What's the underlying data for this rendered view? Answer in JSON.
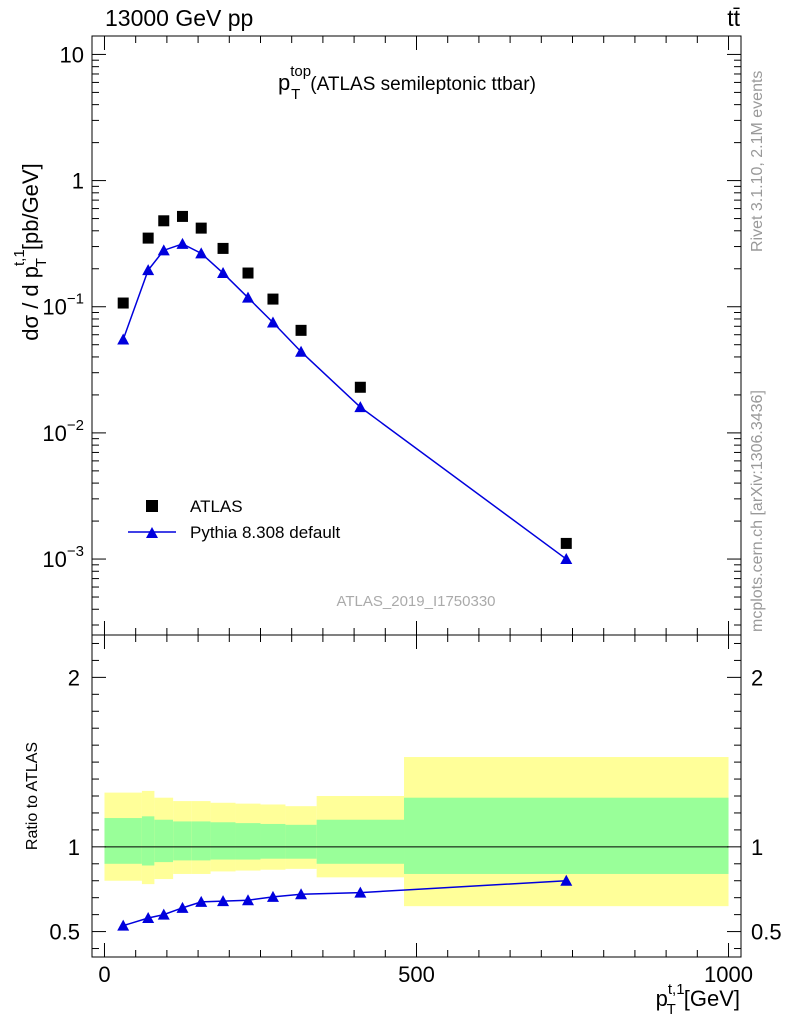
{
  "header": {
    "energy_label": "13000 GeV pp",
    "process_label": "tt̄"
  },
  "side_labels": {
    "rivet": "Rivet 3.1.10,  2.1M events",
    "mcplots": "mcplots.cern.ch [arXiv:1306.3436]"
  },
  "chart_data": [
    {
      "type": "scatter",
      "panel": "main",
      "title": "p_T^top (ATLAS semileptonic ttbar)",
      "title_main": "p",
      "title_sub": "T",
      "title_sup": "top",
      "title_rest": "(ATLAS semileptonic ttbar)",
      "analysis_label": "ATLAS_2019_I1750330",
      "ylabel": "dσ / d p_T^t,1 [pb/GeV]",
      "ylabel_main": "dσ / d p",
      "ylabel_sub": "T",
      "ylabel_sup": "t,1",
      "ylabel_unit": "[pb/GeV]",
      "yscale": "log",
      "xlim": [
        -20,
        1020
      ],
      "ylim": [
        0.00025,
        14
      ],
      "yticks": [
        {
          "value": 10,
          "label": "10"
        },
        {
          "value": 1,
          "label": "1"
        },
        {
          "value": 0.1,
          "base": "10",
          "exp": "−1"
        },
        {
          "value": 0.01,
          "base": "10",
          "exp": "−2"
        },
        {
          "value": 0.001,
          "base": "10",
          "exp": "−3"
        }
      ],
      "legend_position": "lower-left",
      "series": [
        {
          "name": "ATLAS",
          "marker": "square",
          "color": "#000000",
          "x": [
            30,
            70,
            95,
            125,
            155,
            190,
            230,
            270,
            315,
            410,
            740
          ],
          "y": [
            0.107,
            0.35,
            0.48,
            0.52,
            0.42,
            0.29,
            0.185,
            0.115,
            0.065,
            0.023,
            0.00133
          ]
        },
        {
          "name": "Pythia 8.308 default",
          "marker": "triangle",
          "color": "#0000dd",
          "x": [
            30,
            70,
            95,
            125,
            155,
            190,
            230,
            270,
            315,
            410,
            740
          ],
          "y": [
            0.055,
            0.195,
            0.28,
            0.315,
            0.265,
            0.185,
            0.118,
            0.075,
            0.044,
            0.016,
            0.001
          ]
        }
      ]
    },
    {
      "type": "scatter",
      "panel": "ratio",
      "ylabel": "Ratio to ATLAS",
      "xlabel": "p_T^t,1 [GeV]",
      "xlabel_main": "p",
      "xlabel_sub": "T",
      "xlabel_sup": "t,1",
      "xlabel_unit": "[GeV]",
      "xlim": [
        -20,
        1020
      ],
      "ylim": [
        0.35,
        2.25
      ],
      "xticks": [
        {
          "value": 0,
          "label": "0"
        },
        {
          "value": 500,
          "label": "500"
        },
        {
          "value": 1000,
          "label": "1000"
        }
      ],
      "yticks": [
        {
          "value": 0.5,
          "label": "0.5"
        },
        {
          "value": 1,
          "label": "1"
        },
        {
          "value": 2,
          "label": "2"
        }
      ],
      "bands": [
        {
          "x0": 0,
          "x1": 60,
          "green": [
            0.9,
            1.17
          ],
          "yellow": [
            0.8,
            1.32
          ]
        },
        {
          "x0": 60,
          "x1": 80,
          "green": [
            0.89,
            1.18
          ],
          "yellow": [
            0.78,
            1.33
          ]
        },
        {
          "x0": 80,
          "x1": 110,
          "green": [
            0.91,
            1.16
          ],
          "yellow": [
            0.81,
            1.29
          ]
        },
        {
          "x0": 110,
          "x1": 140,
          "green": [
            0.92,
            1.15
          ],
          "yellow": [
            0.84,
            1.27
          ]
        },
        {
          "x0": 140,
          "x1": 170,
          "green": [
            0.92,
            1.15
          ],
          "yellow": [
            0.84,
            1.27
          ]
        },
        {
          "x0": 170,
          "x1": 210,
          "green": [
            0.925,
            1.145
          ],
          "yellow": [
            0.855,
            1.26
          ]
        },
        {
          "x0": 210,
          "x1": 250,
          "green": [
            0.925,
            1.14
          ],
          "yellow": [
            0.86,
            1.255
          ]
        },
        {
          "x0": 250,
          "x1": 290,
          "green": [
            0.93,
            1.135
          ],
          "yellow": [
            0.865,
            1.25
          ]
        },
        {
          "x0": 290,
          "x1": 340,
          "green": [
            0.93,
            1.13
          ],
          "yellow": [
            0.87,
            1.24
          ]
        },
        {
          "x0": 340,
          "x1": 480,
          "green": [
            0.9,
            1.16
          ],
          "yellow": [
            0.82,
            1.3
          ]
        },
        {
          "x0": 480,
          "x1": 1000,
          "green": [
            0.84,
            1.29
          ],
          "yellow": [
            0.65,
            1.53
          ]
        }
      ],
      "reference_line": 1,
      "series": [
        {
          "name": "Pythia 8.308 default",
          "marker": "triangle",
          "color": "#0000dd",
          "x": [
            30,
            70,
            95,
            125,
            155,
            190,
            230,
            270,
            315,
            410,
            740
          ],
          "y": [
            0.535,
            0.58,
            0.6,
            0.64,
            0.675,
            0.68,
            0.685,
            0.705,
            0.72,
            0.73,
            0.8
          ]
        }
      ]
    }
  ],
  "colors": {
    "band_green": "#99ff99",
    "band_yellow": "#ffff99",
    "axis": "#000000",
    "side_text": "#999999",
    "analysis_text": "#aaaaaa"
  }
}
